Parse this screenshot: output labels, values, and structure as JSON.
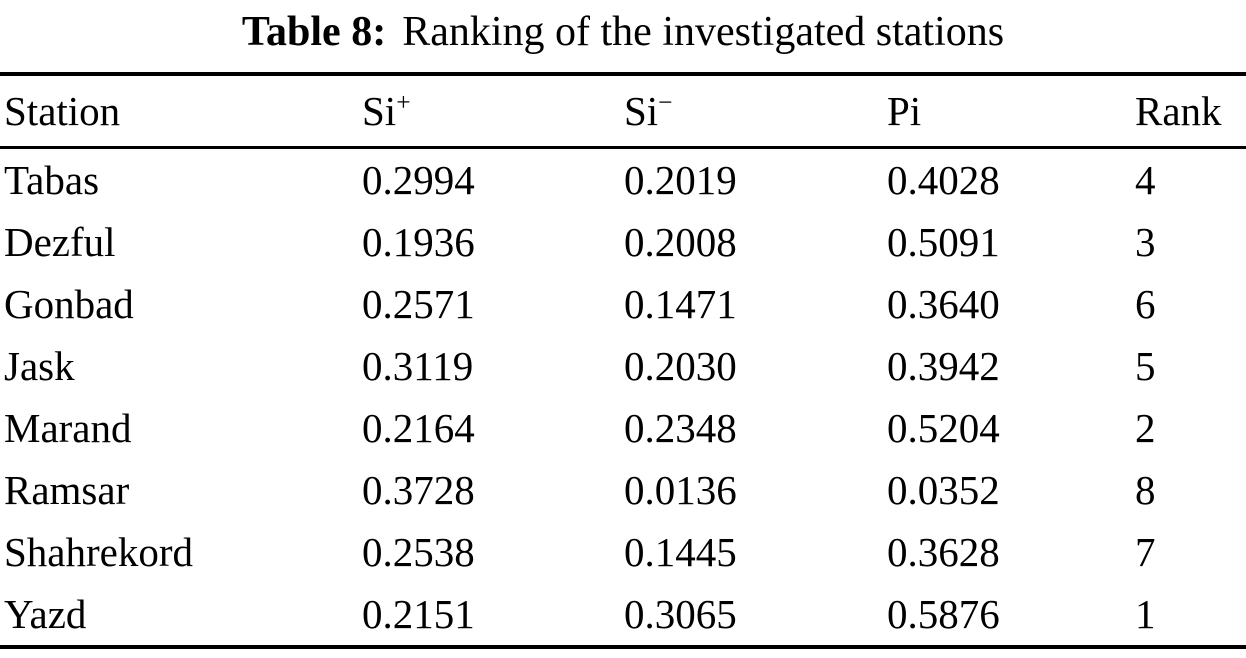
{
  "caption": {
    "label": "Table 8:",
    "text": "Ranking of the investigated stations"
  },
  "table": {
    "columns": [
      {
        "label": "Station",
        "sup": ""
      },
      {
        "label": "Si",
        "sup": "+"
      },
      {
        "label": "Si",
        "sup": "−"
      },
      {
        "label": "Pi",
        "sup": ""
      },
      {
        "label": "Rank",
        "sup": ""
      }
    ],
    "rows": [
      {
        "cells": [
          "Tabas",
          "0.2994",
          "0.2019",
          "0.4028",
          "4"
        ]
      },
      {
        "cells": [
          "Dezful",
          "0.1936",
          "0.2008",
          "0.5091",
          "3"
        ]
      },
      {
        "cells": [
          "Gonbad",
          "0.2571",
          "0.1471",
          "0.3640",
          "6"
        ]
      },
      {
        "cells": [
          "Jask",
          "0.3119",
          "0.2030",
          "0.3942",
          "5"
        ]
      },
      {
        "cells": [
          "Marand",
          "0.2164",
          "0.2348",
          "0.5204",
          "2"
        ]
      },
      {
        "cells": [
          "Ramsar",
          "0.3728",
          "0.0136",
          "0.0352",
          "8"
        ]
      },
      {
        "cells": [
          "Shahrekord",
          "0.2538",
          "0.1445",
          "0.3628",
          "7"
        ]
      },
      {
        "cells": [
          "Yazd",
          "0.2151",
          "0.3065",
          "0.5876",
          "1"
        ]
      }
    ]
  }
}
